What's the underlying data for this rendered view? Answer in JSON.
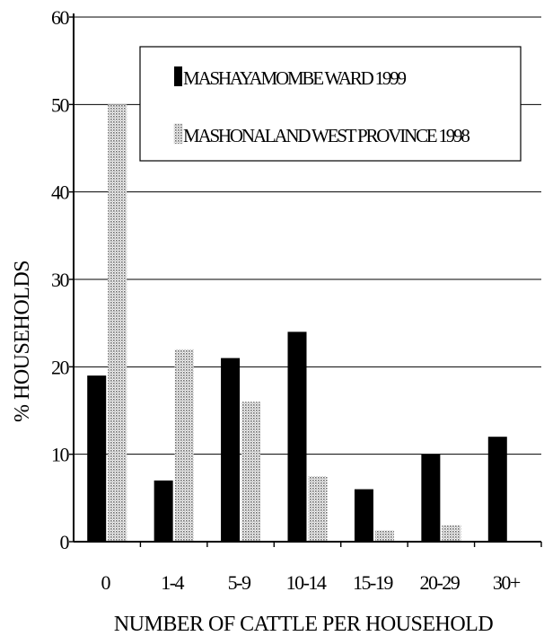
{
  "chart_data": {
    "type": "bar",
    "categories": [
      "0",
      "1-4",
      "5-9",
      "10-14",
      "15-19",
      "20-29",
      "30+"
    ],
    "series": [
      {
        "name": "MASHAYAMOMBE WARD 1999",
        "values": [
          19,
          7,
          21,
          24,
          6,
          10,
          12
        ],
        "color": "#000000",
        "pattern": "solid"
      },
      {
        "name": "MASHONALAND WEST PROVINCE 1998",
        "values": [
          50,
          22,
          16,
          7.5,
          1.3,
          1.9,
          0
        ],
        "color": "#bdbdbd",
        "pattern": "dotted"
      }
    ],
    "ylim": [
      0,
      60
    ],
    "yticks": [
      "0",
      "10",
      "20",
      "30",
      "40",
      "50",
      "60"
    ],
    "xlabel": "NUMBER OF CATTLE PER HOUSEHOLD",
    "ylabel": "% HOUSEHOLDS",
    "grid": "horizontal",
    "legend_position": "top-right"
  }
}
